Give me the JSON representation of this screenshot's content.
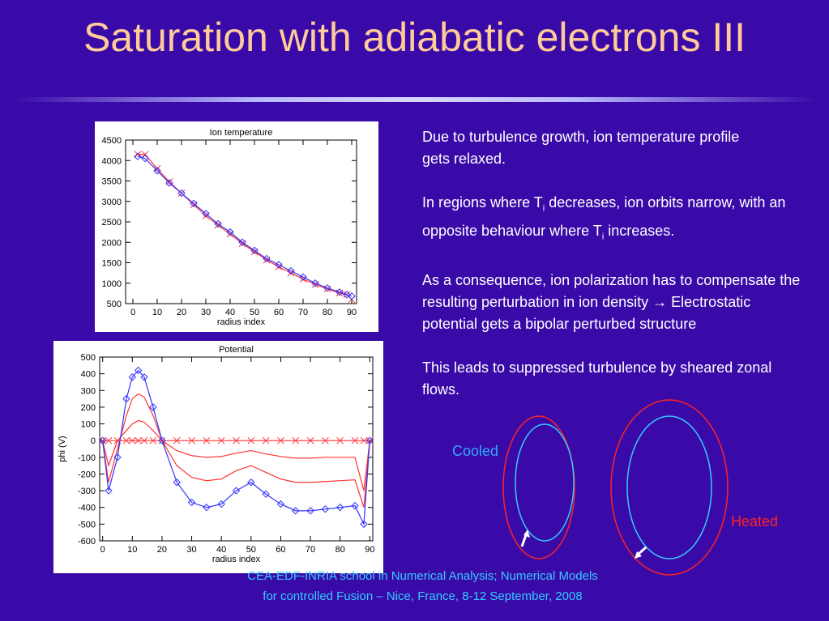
{
  "title": "Saturation with adiabatic electrons III",
  "paragraphs": [
    {
      "line1": "Due to turbulence growth, ion temperature profile",
      "line2": "gets relaxed."
    },
    {
      "a": "In regions where T",
      "sub1": "i",
      "b": " decreases, ion orbits narrow, with an opposite behaviour where T",
      "sub2": "i",
      "c": " increases."
    },
    {
      "text": "As a consequence, ion polarization has to compensate the resulting perturbation in ion density  → Electrostatic potential gets a bipolar perturbed structure"
    },
    {
      "text": "This leads to suppressed turbulence by sheared zonal flows."
    }
  ],
  "diagram": {
    "cooled": "Cooled",
    "heated": "Heated"
  },
  "footer": {
    "line1": "CEA-EDF-INRIA school in Numerical Analysis; Numerical Models",
    "line2": "for controlled Fusion – Nice, France, 8-12 September,  2008"
  },
  "chart_data": [
    {
      "type": "line",
      "title": "Ion temperature",
      "xlabel": "radius index",
      "x": [
        2,
        5,
        10,
        15,
        20,
        25,
        30,
        35,
        40,
        45,
        50,
        55,
        60,
        65,
        70,
        75,
        80,
        85,
        88,
        90
      ],
      "series": [
        {
          "color": "#ff3333",
          "marker": "x",
          "values": [
            4150,
            4150,
            3800,
            3480,
            3200,
            2920,
            2650,
            2420,
            2200,
            1970,
            1770,
            1570,
            1400,
            1250,
            1100,
            970,
            860,
            760,
            720,
            600
          ]
        },
        {
          "color": "#3333ff",
          "marker": "diamond",
          "values": [
            4100,
            4050,
            3750,
            3450,
            3200,
            2950,
            2700,
            2450,
            2250,
            2000,
            1800,
            1600,
            1450,
            1300,
            1150,
            1000,
            880,
            780,
            720,
            680
          ]
        }
      ],
      "xlim": [
        -3,
        92
      ],
      "xticks": [
        0,
        10,
        20,
        30,
        40,
        50,
        60,
        70,
        80,
        90
      ],
      "ylim": [
        500,
        4500
      ],
      "yticks": [
        500,
        1000,
        1500,
        2000,
        2500,
        3000,
        3500,
        4000,
        4500
      ]
    },
    {
      "type": "line",
      "title": "Potential",
      "xlabel": "radius index",
      "ylabel": "phi (V)",
      "x": [
        0,
        2,
        5,
        8,
        10,
        12,
        14,
        17,
        20,
        25,
        30,
        35,
        40,
        45,
        50,
        55,
        60,
        65,
        70,
        75,
        80,
        85,
        88,
        90
      ],
      "series": [
        {
          "color": "#ff3333",
          "marker": "x",
          "values": [
            0,
            0,
            0,
            0,
            0,
            0,
            0,
            0,
            0,
            0,
            0,
            0,
            0,
            0,
            0,
            0,
            0,
            0,
            0,
            0,
            0,
            0,
            0,
            0
          ]
        },
        {
          "color": "#ff3333",
          "values": [
            0,
            -150,
            0,
            60,
            100,
            120,
            110,
            60,
            0,
            -60,
            -90,
            -100,
            -95,
            -75,
            -60,
            -80,
            -95,
            -105,
            -105,
            -100,
            -100,
            -100,
            -300,
            0
          ]
        },
        {
          "color": "#ff3333",
          "values": [
            0,
            -250,
            -50,
            150,
            250,
            280,
            260,
            150,
            0,
            -150,
            -220,
            -240,
            -230,
            -180,
            -150,
            -190,
            -230,
            -250,
            -250,
            -245,
            -240,
            -235,
            -400,
            0
          ]
        },
        {
          "color": "#3333ff",
          "marker": "diamond",
          "values": [
            0,
            -300,
            -100,
            250,
            380,
            420,
            380,
            200,
            0,
            -250,
            -370,
            -400,
            -380,
            -300,
            -250,
            -320,
            -380,
            -420,
            -420,
            -410,
            -400,
            -390,
            -500,
            0
          ]
        }
      ],
      "xlim": [
        -1,
        91
      ],
      "xticks": [
        0,
        10,
        20,
        30,
        40,
        50,
        60,
        70,
        80,
        90
      ],
      "ylim": [
        -600,
        500
      ],
      "yticks": [
        -600,
        -500,
        -400,
        -300,
        -200,
        -100,
        0,
        100,
        200,
        300,
        400,
        500
      ]
    }
  ]
}
